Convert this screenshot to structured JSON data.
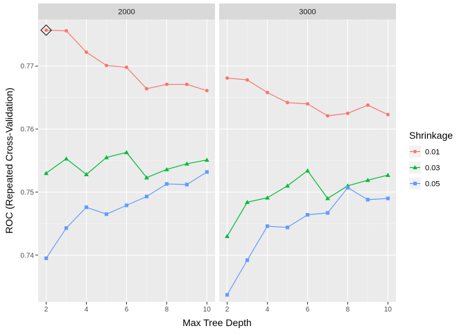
{
  "chart_data": {
    "type": "line",
    "xlabel": "Max Tree Depth",
    "ylabel": "ROC (Repeated Cross-Validation)",
    "x": [
      2,
      3,
      4,
      5,
      6,
      7,
      8,
      9,
      10
    ],
    "x_ticks": [
      2,
      4,
      6,
      8,
      10
    ],
    "xlim": [
      1.6,
      10.4
    ],
    "y_ticks": [
      0.74,
      0.75,
      0.76,
      0.77
    ],
    "y_tick_labels": [
      "0.74",
      "0.75",
      "0.76",
      "0.77"
    ],
    "ylim": [
      0.7326,
      0.7774
    ],
    "grid": true,
    "legend": {
      "title": "Shrinkage",
      "placement": "right",
      "entries": [
        "0.01",
        "0.03",
        "0.05"
      ]
    },
    "colors": {
      "0.01": "#F8766D",
      "0.03": "#00BA38",
      "0.05": "#619CFF"
    },
    "panels": [
      {
        "label": "2000",
        "series": [
          {
            "shrinkage": "0.01",
            "marker": "circle",
            "values": [
              0.7757,
              0.7756,
              0.7722,
              0.7701,
              0.7698,
              0.7664,
              0.7671,
              0.7671,
              0.7661
            ]
          },
          {
            "shrinkage": "0.03",
            "marker": "triangle",
            "values": [
              0.753,
              0.7553,
              0.7528,
              0.7555,
              0.7563,
              0.7523,
              0.7536,
              0.7545,
              0.7551
            ]
          },
          {
            "shrinkage": "0.05",
            "marker": "square",
            "values": [
              0.7395,
              0.7443,
              0.7476,
              0.7465,
              0.7479,
              0.7493,
              0.7513,
              0.7512,
              0.7532
            ]
          }
        ],
        "best_marker": {
          "x": 2,
          "y": 0.7757
        }
      },
      {
        "label": "3000",
        "series": [
          {
            "shrinkage": "0.01",
            "marker": "circle",
            "values": [
              0.7681,
              0.7678,
              0.7658,
              0.7642,
              0.764,
              0.7621,
              0.7625,
              0.7638,
              0.7623
            ]
          },
          {
            "shrinkage": "0.03",
            "marker": "triangle",
            "values": [
              0.743,
              0.7484,
              0.7491,
              0.751,
              0.7534,
              0.749,
              0.751,
              0.7519,
              0.7527
            ]
          },
          {
            "shrinkage": "0.05",
            "marker": "square",
            "values": [
              0.7337,
              0.7392,
              0.7446,
              0.7444,
              0.7464,
              0.7467,
              0.7507,
              0.7488,
              0.749
            ]
          }
        ]
      }
    ]
  }
}
